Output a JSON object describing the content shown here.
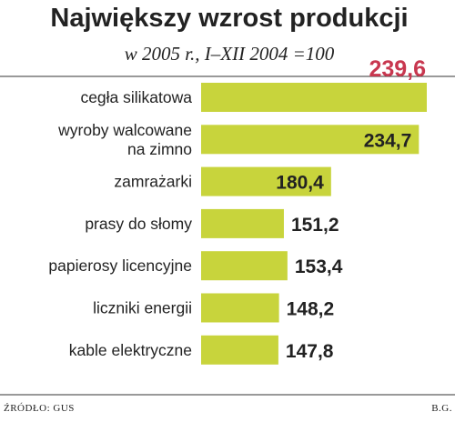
{
  "chart_data": {
    "type": "bar",
    "orientation": "horizontal",
    "title": "Największy wzrost produkcji",
    "subtitle": "w 2005 r.,  I–XII 2004 =100",
    "categories": [
      [
        "cegła silikatowa"
      ],
      [
        "wyroby walcowane",
        "na zimno"
      ],
      [
        "zamrażarki"
      ],
      [
        "prasy do słomy"
      ],
      [
        "papierosy licencyjne"
      ],
      [
        "liczniki energii"
      ],
      [
        "kable elektryczne"
      ]
    ],
    "values": [
      239.6,
      234.7,
      180.4,
      151.2,
      153.4,
      148.2,
      147.8
    ],
    "value_labels": [
      "239,6",
      "234,7",
      "180,4",
      "151,2",
      "153,4",
      "148,2",
      "147,8"
    ],
    "highlight_index": 0,
    "bar_color": "#c8d43c",
    "highlight_label_color": "#c8374f",
    "grid": false,
    "legend": "none"
  },
  "footer": {
    "source": "ŹRÓDŁO: GUS",
    "author": "B.G."
  }
}
